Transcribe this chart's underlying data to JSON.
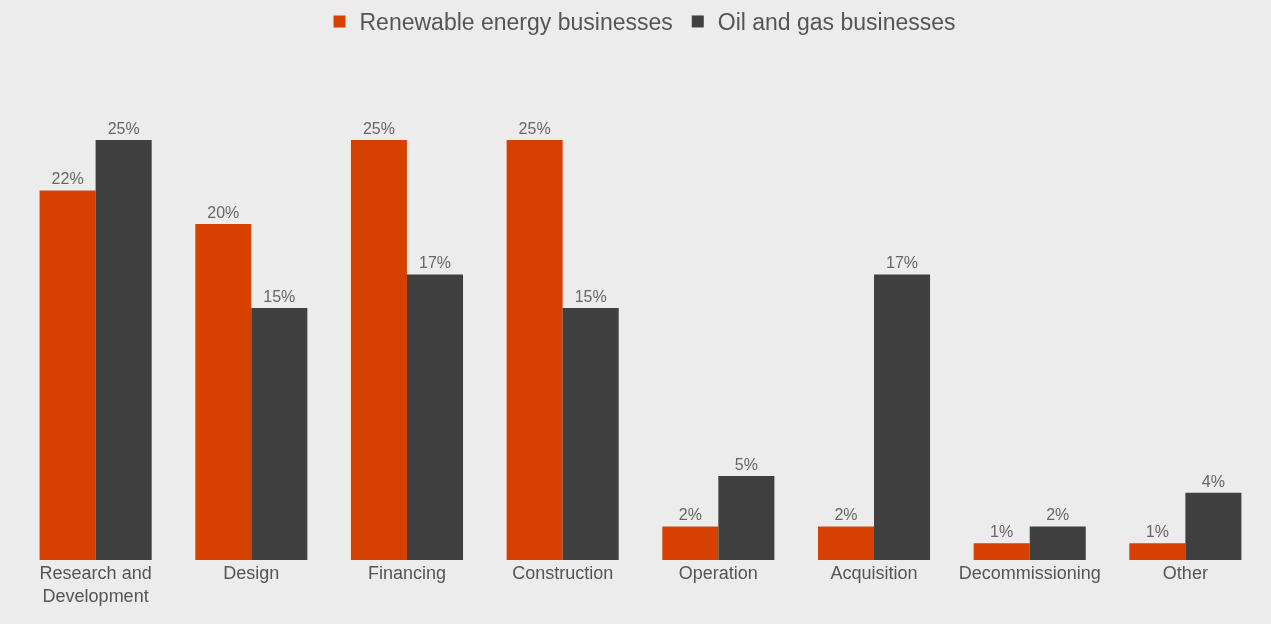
{
  "chart_data": {
    "type": "bar",
    "categories": [
      "Research and Development",
      "Design",
      "Financing",
      "Construction",
      "Operation",
      "Acquisition",
      "Decommissioning",
      "Other"
    ],
    "series": [
      {
        "name": "Renewable energy businesses",
        "color": "#d64000",
        "values": [
          22,
          20,
          25,
          25,
          2,
          2,
          1,
          1
        ],
        "value_labels": [
          "22%",
          "20%",
          "25%",
          "25%",
          "2%",
          "2%",
          "1%",
          "1%"
        ]
      },
      {
        "name": "Oil and gas businesses",
        "color": "#404040",
        "values": [
          25,
          15,
          17,
          15,
          5,
          17,
          2,
          4
        ],
        "value_labels": [
          "25%",
          "15%",
          "17%",
          "15%",
          "5%",
          "17%",
          "2%",
          "4%"
        ]
      }
    ],
    "tick_labels": "x",
    "grid": false,
    "legend": "top"
  }
}
